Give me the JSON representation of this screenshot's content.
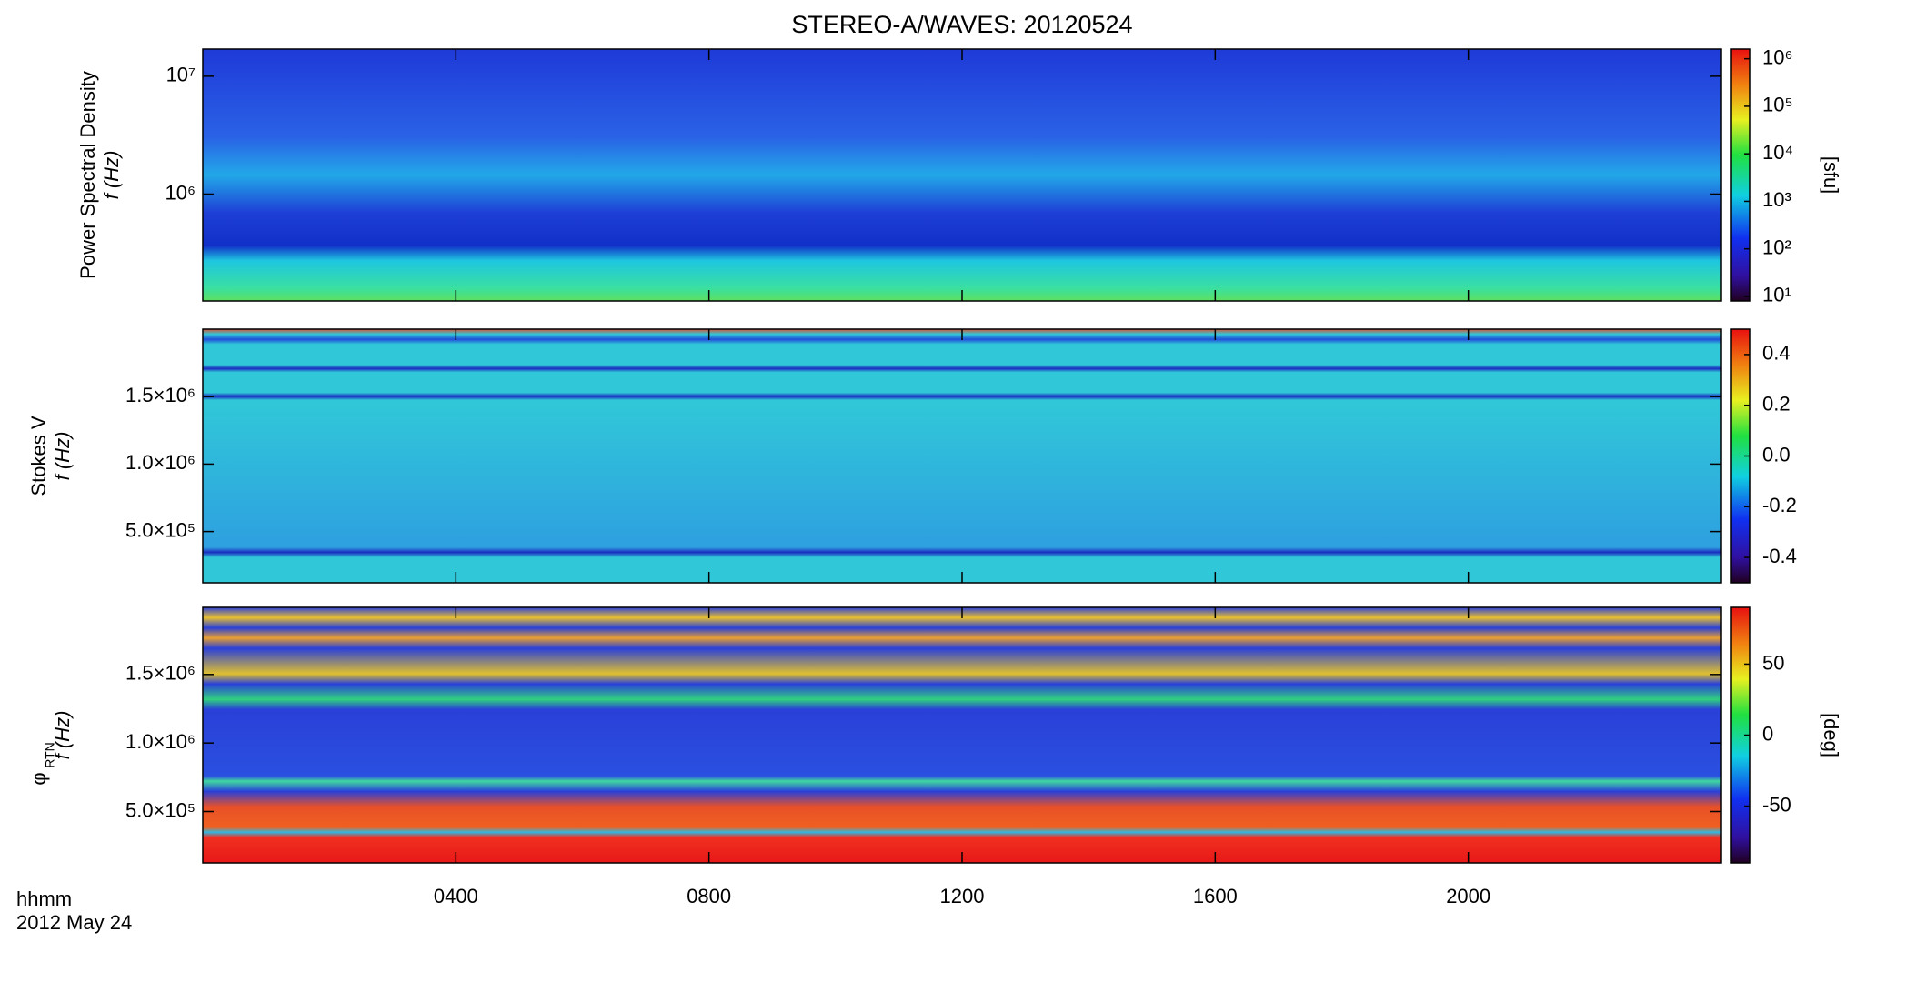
{
  "figure": {
    "title": "STEREO-A/WAVES: 20120524",
    "x_label": "hhmm",
    "date": "2012 May 24"
  },
  "chart_data": [
    {
      "type": "heatmap",
      "ylabel": [
        "Power Spectral Density",
        "f (Hz)"
      ],
      "ylog": true,
      "ylim": [
        124000,
        17000000
      ],
      "yticks": [
        {
          "value": 1000000,
          "label": "10⁶"
        },
        {
          "value": 10000000,
          "label": "10⁷"
        }
      ],
      "xlim": [
        0,
        24
      ],
      "clog": true,
      "clim": [
        8,
        1600000
      ],
      "cticks": [
        {
          "value": 10,
          "label": "10¹"
        },
        {
          "value": 100,
          "label": "10²"
        },
        {
          "value": 1000,
          "label": "10³"
        },
        {
          "value": 10000,
          "label": "10⁴"
        },
        {
          "value": 100000,
          "label": "10⁵"
        },
        {
          "value": 1000000,
          "label": "10⁶"
        }
      ],
      "clabel": "[sfu]"
    },
    {
      "type": "heatmap",
      "ylabel": [
        "Stokes V",
        "f (Hz)"
      ],
      "ylog": false,
      "ylim": [
        120000,
        2000000
      ],
      "yticks": [
        {
          "value": 500000,
          "label": "5.0×10⁵"
        },
        {
          "value": 1000000,
          "label": "1.0×10⁶"
        },
        {
          "value": 1500000,
          "label": "1.5×10⁶"
        }
      ],
      "xlim": [
        0,
        24
      ],
      "clog": false,
      "clim": [
        -0.5,
        0.5
      ],
      "cticks": [
        -0.4,
        -0.2,
        {
          "value": 0,
          "label": "0.0"
        },
        0.2,
        0.4
      ]
    },
    {
      "type": "heatmap",
      "ylabel": [
        "φ",
        "RTN",
        "f (Hz)"
      ],
      "ylog": false,
      "ylim": [
        125000,
        1990000
      ],
      "yticks": [
        {
          "value": 500000,
          "label": "5.0×10⁵"
        },
        {
          "value": 1000000,
          "label": "1.0×10⁶"
        },
        {
          "value": 1500000,
          "label": "1.5×10⁶"
        }
      ],
      "xlim": [
        0,
        24
      ],
      "xticks": [
        {
          "value": 4,
          "label": "0400"
        },
        {
          "value": 8,
          "label": "0800"
        },
        {
          "value": 12,
          "label": "1200"
        },
        {
          "value": 16,
          "label": "1600"
        },
        {
          "value": 20,
          "label": "2000"
        }
      ],
      "clog": false,
      "clim": [
        -90,
        90
      ],
      "cticks": [
        -50,
        0,
        50
      ],
      "clabel": "[deg]"
    }
  ]
}
